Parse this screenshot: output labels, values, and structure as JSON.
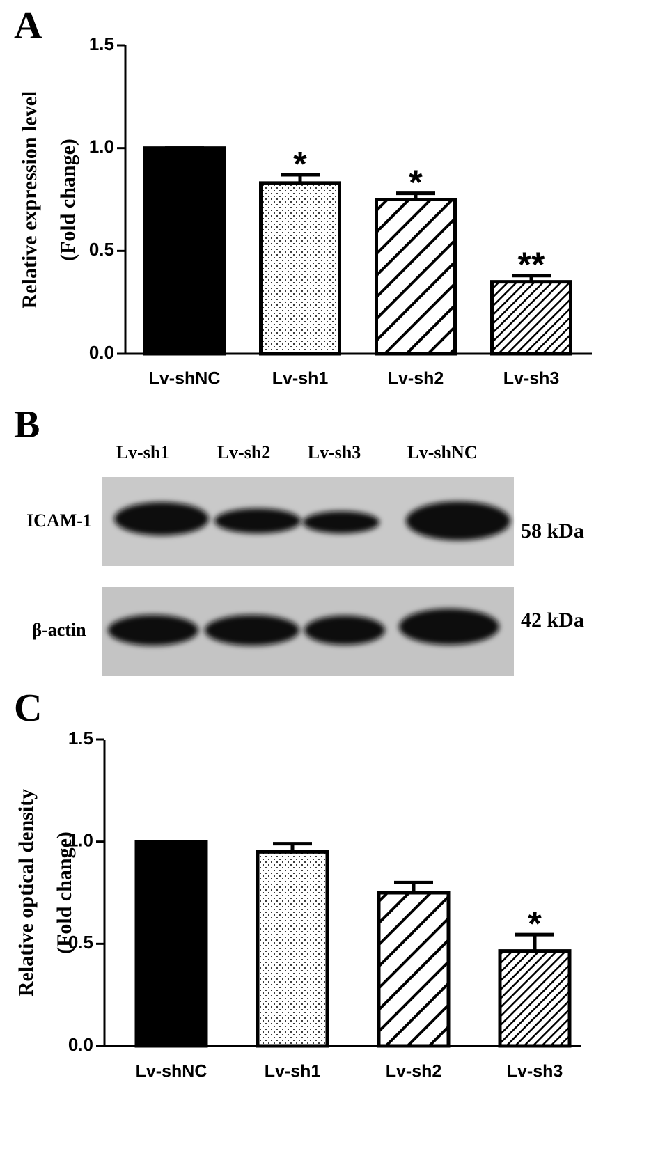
{
  "chart_data": [
    {
      "type": "bar",
      "panel": "A",
      "ylabel": [
        "Relative expression level",
        "(Fold change)"
      ],
      "categories": [
        "Lv-shNC",
        "Lv-sh1",
        "Lv-sh2",
        "Lv-sh3"
      ],
      "values": [
        1.0,
        0.83,
        0.75,
        0.35
      ],
      "errors": [
        0,
        0.04,
        0.03,
        0.03
      ],
      "annotations": [
        null,
        "*",
        "*",
        "**"
      ],
      "patterns": [
        "solid",
        "dots",
        "hatch",
        "dense-hatch"
      ],
      "color": "#000000",
      "ylim": [
        0,
        1.5
      ],
      "yticks": [
        {
          "value": 0,
          "label": "0.0"
        },
        0.5,
        {
          "value": 1,
          "label": "1.0"
        },
        1.5
      ]
    },
    {
      "type": "bar",
      "panel": "C",
      "ylabel": [
        "Relative optical density",
        "(Fold change)"
      ],
      "categories": [
        "Lv-shNC",
        "Lv-sh1",
        "Lv-sh2",
        "Lv-sh3"
      ],
      "values": [
        1.0,
        0.95,
        0.75,
        0.465
      ],
      "errors": [
        0,
        0.04,
        0.05,
        0.08
      ],
      "annotations": [
        null,
        null,
        null,
        "*"
      ],
      "patterns": [
        "solid",
        "dots",
        "hatch",
        "dense-hatch"
      ],
      "color": "#000000",
      "ylim": [
        0,
        1.5
      ],
      "yticks": [
        {
          "value": 0,
          "label": "0.0"
        },
        0.5,
        {
          "value": 1,
          "label": "1.0"
        },
        1.5
      ]
    }
  ],
  "blot": {
    "panel": "B",
    "lanes": [
      "Lv-sh1",
      "Lv-sh2",
      "Lv-sh3",
      "Lv-shNC"
    ],
    "rows": [
      {
        "label": "ICAM-1",
        "size": "58 kDa"
      },
      {
        "label": "β-actin",
        "size": "42 kDa"
      }
    ]
  }
}
